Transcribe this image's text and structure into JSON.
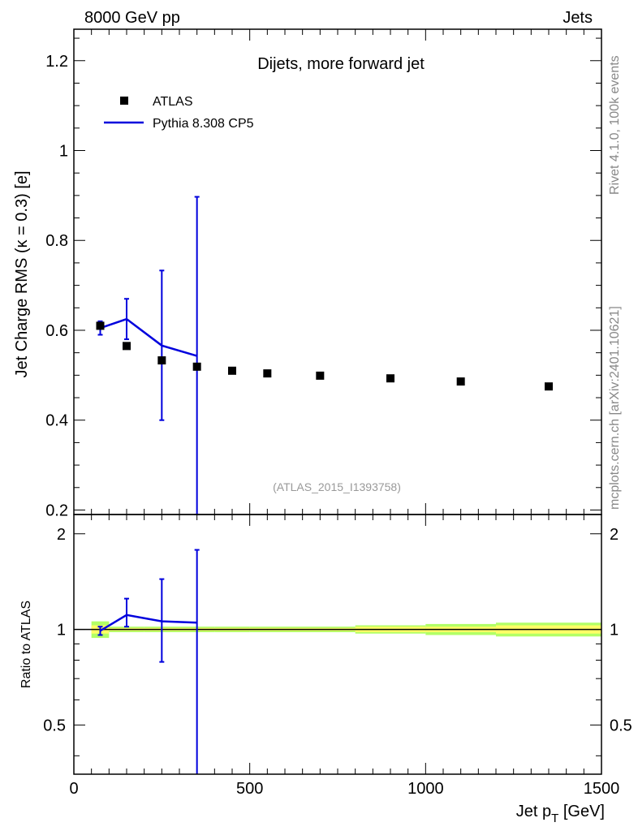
{
  "header": {
    "left": "8000 GeV pp",
    "right": "Jets"
  },
  "side": {
    "rivet": "Rivet 4.1.0,  100k events",
    "source": "mcplots.cern.ch [arXiv:2401.10621]"
  },
  "analysis_id": "(ATLAS_2015_I1393758)",
  "chart_data": [
    {
      "type": "scatter",
      "title": "Dijets, more forward jet",
      "ylabel": "Jet Charge RMS (κ = 0.3) [e]",
      "xlim": [
        0,
        1500
      ],
      "ylim": [
        0.19,
        1.27
      ],
      "yticks": [
        0.2,
        0.4,
        0.6,
        0.8,
        1,
        1.2
      ],
      "ytick_labels": [
        "0.2",
        "0.4",
        "0.6",
        "0.8",
        "1",
        "1.2"
      ],
      "legend_position": "top-left",
      "series": [
        {
          "name": "ATLAS",
          "kind": "markers",
          "color": "#000000",
          "x": [
            75,
            150,
            250,
            350,
            450,
            550,
            700,
            900,
            1100,
            1350
          ],
          "y": [
            0.61,
            0.565,
            0.533,
            0.519,
            0.51,
            0.504,
            0.499,
            0.493,
            0.486,
            0.475
          ]
        },
        {
          "name": "Pythia 8.308 CP5",
          "kind": "line",
          "color": "#0000dd",
          "x": [
            75,
            150,
            250,
            350
          ],
          "y": [
            0.605,
            0.625,
            0.566,
            0.543
          ],
          "err_low": [
            0.59,
            0.58,
            0.4,
            0.19
          ],
          "err_high": [
            0.62,
            0.67,
            0.733,
            0.897
          ]
        }
      ]
    },
    {
      "type": "line",
      "ylabel": "Ratio to ATLAS",
      "xlabel": "Jet p_T [GeV]",
      "xlim": [
        0,
        1500
      ],
      "ylim": [
        0.35,
        2.3
      ],
      "yticks": [
        0.5,
        1,
        2
      ],
      "ytick_labels": [
        "0.5",
        "1",
        "2"
      ],
      "xticks": [
        0,
        500,
        1000,
        1500
      ],
      "xtick_labels": [
        "0",
        "500",
        "1000",
        "1500"
      ],
      "series": [
        {
          "name": "Pythia 8.308 CP5",
          "color": "#0000dd",
          "x": [
            75,
            150,
            250,
            350
          ],
          "y": [
            0.99,
            1.11,
            1.06,
            1.05
          ],
          "err_low": [
            0.96,
            1.02,
            0.79,
            0.35
          ],
          "err_high": [
            1.02,
            1.25,
            1.44,
            1.78
          ]
        }
      ],
      "data_band": {
        "x_edges": [
          50,
          100,
          200,
          300,
          400,
          500,
          600,
          800,
          1000,
          1200,
          1500
        ],
        "stat_low": [
          0.97,
          0.99,
          0.99,
          0.99,
          0.99,
          0.99,
          0.99,
          0.98,
          0.98,
          0.97
        ],
        "stat_high": [
          1.03,
          1.01,
          1.01,
          1.01,
          1.01,
          1.01,
          1.01,
          1.02,
          1.02,
          1.03
        ],
        "tot_low": [
          0.94,
          0.98,
          0.98,
          0.98,
          0.98,
          0.98,
          0.98,
          0.97,
          0.96,
          0.95
        ],
        "tot_high": [
          1.06,
          1.02,
          1.02,
          1.02,
          1.02,
          1.02,
          1.02,
          1.03,
          1.04,
          1.05
        ]
      }
    }
  ],
  "colors": {
    "band_inner": "#ffff66",
    "band_outer": "#b2ff66",
    "mc": "#0000dd"
  }
}
